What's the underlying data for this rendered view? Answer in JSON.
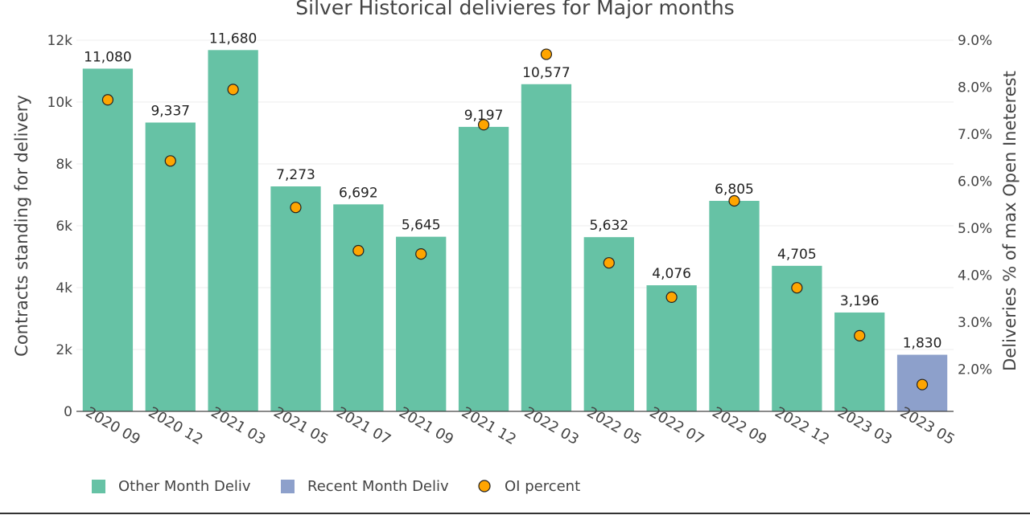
{
  "chart_data": {
    "type": "bar",
    "title": "Silver Historical delivieres for Major months",
    "ylabel": "Contracts standing for delivery",
    "y2label": "Deliveries % of max Open Ineterest",
    "ylim": [
      0,
      12000
    ],
    "y2lim": [
      1.1,
      9.0
    ],
    "yticks": [
      0,
      2000,
      4000,
      6000,
      8000,
      10000,
      12000
    ],
    "ytick_labels": [
      "0",
      "2k",
      "4k",
      "6k",
      "8k",
      "10k",
      "12k"
    ],
    "y2ticks": [
      2.0,
      3.0,
      4.0,
      5.0,
      6.0,
      7.0,
      8.0,
      9.0
    ],
    "y2tick_labels": [
      "2.0%",
      "3.0%",
      "4.0%",
      "5.0%",
      "6.0%",
      "7.0%",
      "8.0%",
      "9.0%"
    ],
    "categories": [
      "2020 09",
      "2020 12",
      "2021 03",
      "2021 05",
      "2021 07",
      "2021 09",
      "2021 12",
      "2022 03",
      "2022 05",
      "2022 07",
      "2022 09",
      "2022 12",
      "2023 03",
      "2023 05"
    ],
    "series": [
      {
        "name": "Other Month Deliv",
        "type": "bar",
        "color": "#66c2a5",
        "values": [
          11080,
          9337,
          11680,
          7273,
          6692,
          5645,
          9197,
          10577,
          5632,
          4076,
          6805,
          4705,
          3196,
          null
        ]
      },
      {
        "name": "Recent Month Deliv",
        "type": "bar",
        "color": "#8da0cb",
        "values": [
          null,
          null,
          null,
          null,
          null,
          null,
          null,
          null,
          null,
          null,
          null,
          null,
          null,
          1830
        ]
      },
      {
        "name": "OI percent",
        "type": "scatter",
        "axis": "y2",
        "color": "#ffa500",
        "values": [
          7.73,
          6.43,
          7.95,
          5.44,
          4.52,
          4.45,
          7.2,
          8.7,
          4.26,
          3.53,
          5.58,
          3.73,
          2.71,
          1.67
        ]
      }
    ],
    "data_labels": [
      "11,080",
      "9,337",
      "11,680",
      "7,273",
      "6,692",
      "5,645",
      "9,197",
      "10,577",
      "5,632",
      "4,076",
      "6,805",
      "4,705",
      "3,196",
      "1,830"
    ],
    "grid": true,
    "legend_position": "bottom-left"
  }
}
